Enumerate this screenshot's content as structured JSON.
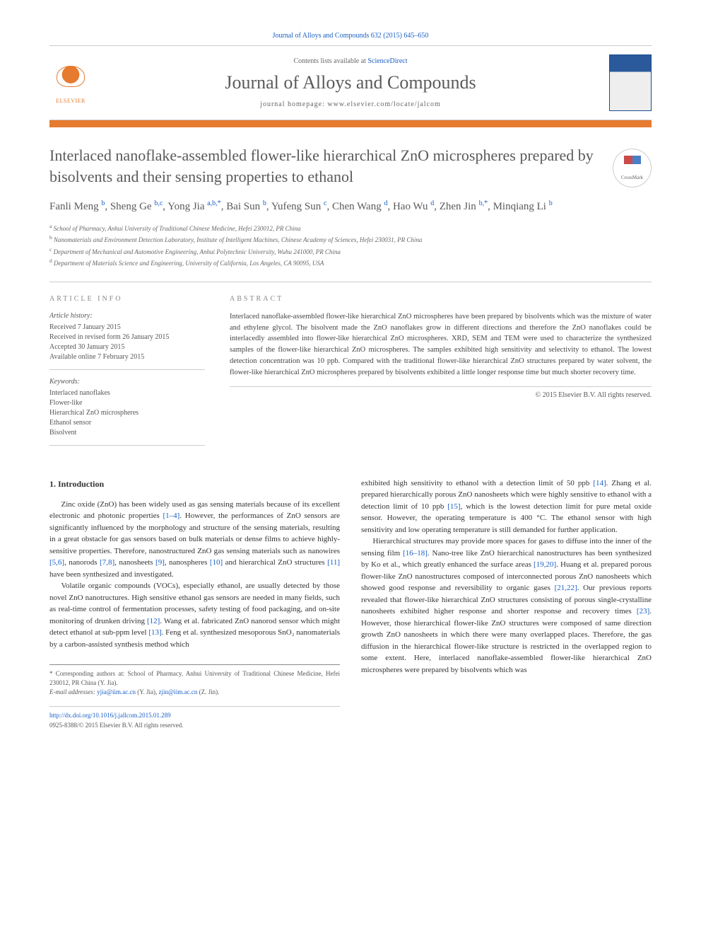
{
  "header": {
    "citation": "Journal of Alloys and Compounds 632 (2015) 645–650",
    "contents_prefix": "Contents lists available at ",
    "contents_link": "ScienceDirect",
    "journal_title": "Journal of Alloys and Compounds",
    "homepage_label": "journal homepage: www.elsevier.com/locate/jalcom",
    "elsevier_label": "ELSEVIER",
    "cover_text": "ALLOYS AND COMPOUNDS"
  },
  "crossmark_label": "CrossMark",
  "article": {
    "title": "Interlaced nanoflake-assembled flower-like hierarchical ZnO microspheres prepared by bisolvents and their sensing properties to ethanol",
    "authors_html": "Fanli Meng <sup>b</sup>, Sheng Ge <sup>b,c</sup>, Yong Jia <sup>a,b,*</sup>, Bai Sun <sup>b</sup>, Yufeng Sun <sup>c</sup>, Chen Wang <sup>d</sup>, Hao Wu <sup>d</sup>, Zhen Jin <sup>b,*</sup>, Minqiang Li <sup>b</sup>",
    "affiliations": [
      "a School of Pharmacy, Anhui University of Traditional Chinese Medicine, Hefei 230012, PR China",
      "b Nanomaterials and Environment Detection Laboratory, Institute of Intelligent Machines, Chinese Academy of Sciences, Hefei 230031, PR China",
      "c Department of Mechanical and Automotive Engineering, Anhui Polytechnic University, Wuhu 241000, PR China",
      "d Department of Materials Science and Engineering, University of California, Los Angeles, CA 90095, USA"
    ]
  },
  "info": {
    "heading": "ARTICLE INFO",
    "history_label": "Article history:",
    "history": [
      "Received 7 January 2015",
      "Received in revised form 26 January 2015",
      "Accepted 30 January 2015",
      "Available online 7 February 2015"
    ],
    "keywords_label": "Keywords:",
    "keywords": [
      "Interlaced nanoflakes",
      "Flower-like",
      "Hierarchical ZnO microspheres",
      "Ethanol sensor",
      "Bisolvent"
    ]
  },
  "abstract": {
    "heading": "ABSTRACT",
    "text": "Interlaced nanoflake-assembled flower-like hierarchical ZnO microspheres have been prepared by bisolvents which was the mixture of water and ethylene glycol. The bisolvent made the ZnO nanoflakes grow in different directions and therefore the ZnO nanoflakes could be interlacedly assembled into flower-like hierarchical ZnO microspheres. XRD, SEM and TEM were used to characterize the synthesized samples of the flower-like hierarchical ZnO microspheres. The samples exhibited high sensitivity and selectivity to ethanol. The lowest detection concentration was 10 ppb. Compared with the traditional flower-like hierarchical ZnO structures prepared by water solvent, the flower-like hierarchical ZnO microspheres prepared by bisolvents exhibited a little longer response time but much shorter recovery time.",
    "copyright": "© 2015 Elsevier B.V. All rights reserved."
  },
  "body": {
    "section_heading": "1. Introduction",
    "left_paragraphs": [
      "Zinc oxide (ZnO) has been widely used as gas sensing materials because of its excellent electronic and photonic properties [1–4]. However, the performances of ZnO sensors are significantly influenced by the morphology and structure of the sensing materials, resulting in a great obstacle for gas sensors based on bulk materials or dense films to achieve highly-sensitive properties. Therefore, nanostructured ZnO gas sensing materials such as nanowires [5,6], nanorods [7,8], nanosheets [9], nanospheres [10] and hierarchical ZnO structures [11] have been synthesized and investigated.",
      "Volatile organic compounds (VOCs), especially ethanol, are usually detected by those novel ZnO nanotructures. High sensitive ethanol gas sensors are needed in many fields, such as real-time control of fermentation processes, safety testing of food packaging, and on-site monitoring of drunken driving [12]. Wang et al. fabricated ZnO nanorod sensor which might detect ethanol at sub-ppm level [13]. Feng et al. synthesized mesoporous SnO₂ nanomaterials by a carbon-assisted synthesis method which"
    ],
    "right_paragraphs": [
      "exhibited high sensitivity to ethanol with a detection limit of 50 ppb [14]. Zhang et al. prepared hierarchically porous ZnO nanosheets which were highly sensitive to ethanol with a detection limit of 10 ppb [15], which is the lowest detection limit for pure metal oxide sensor. However, the operating temperature is 400 °C. The ethanol sensor with high sensitivity and low operating temperature is still demanded for further application.",
      "Hierarchical structures may provide more spaces for gases to diffuse into the inner of the sensing film [16–18]. Nano-tree like ZnO hierarchical nanostructures has been synthesized by Ko et al., which greatly enhanced the surface areas [19,20]. Huang et al. prepared porous flower-like ZnO nanostructures composed of interconnected porous ZnO nanosheets which showed good response and reversibility to organic gases [21,22]. Our previous reports revealed that flower-like hierarchical ZnO structures consisting of porous single-crystalline nanosheets exhibited higher response and shorter response and recovery times [23]. However, those hierarchical flower-like ZnO structures were composed of same direction growth ZnO nanosheets in which there were many overlapped places. Therefore, the gas diffusion in the hierarchical flower-like structure is restricted in the overlapped region to some extent. Here, interlaced nanoflake-assembled flower-like hierarchical ZnO microspheres were prepared by bisolvents which was"
    ]
  },
  "footnote": {
    "corresponding": "* Corresponding authors at: School of Pharmacy, Anhui University of Traditional Chinese Medicine, Hefei 230012, PR China (Y. Jia).",
    "email_label": "E-mail addresses: ",
    "email1": "yjia@iim.ac.cn",
    "email1_who": " (Y. Jia), ",
    "email2": "zjin@iim.ac.cn",
    "email2_who": " (Z. Jin)."
  },
  "footer": {
    "doi": "http://dx.doi.org/10.1016/j.jallcom.2015.01.289",
    "issn_line": "0925-8388/© 2015 Elsevier B.V. All rights reserved."
  },
  "colors": {
    "accent_orange": "#e67a2e",
    "link_blue": "#1a5fc4",
    "text_gray": "#5a5a5a"
  }
}
